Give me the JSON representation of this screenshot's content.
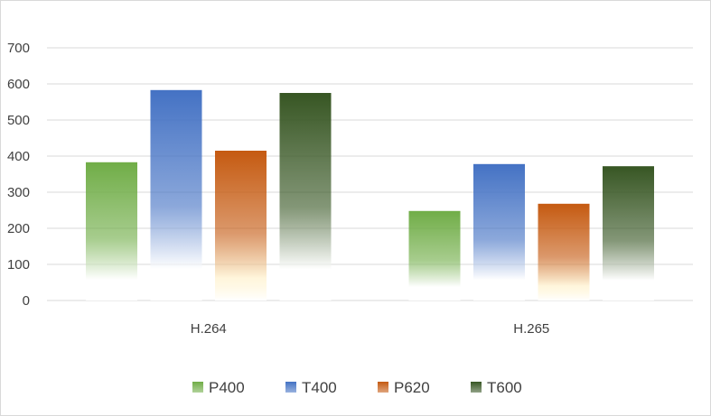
{
  "chart_data": {
    "type": "bar",
    "categories": [
      "H.264",
      "H.265"
    ],
    "series": [
      {
        "name": "P400",
        "values": [
          383,
          248
        ],
        "color": "#70ad47",
        "fade": "#ffffff"
      },
      {
        "name": "T400",
        "values": [
          583,
          378
        ],
        "color": "#4472c4",
        "fade": "#ffffff"
      },
      {
        "name": "P620",
        "values": [
          415,
          268
        ],
        "color": "#c55a11",
        "fade": "#fff2cc"
      },
      {
        "name": "T600",
        "values": [
          575,
          372
        ],
        "color": "#375623",
        "fade": "#ffffff"
      }
    ],
    "ylim": [
      0,
      700
    ],
    "yticks": [
      0,
      100,
      200,
      300,
      400,
      500,
      600,
      700
    ],
    "grid": true,
    "legend_position": "bottom",
    "title": "",
    "xlabel": "",
    "ylabel": ""
  }
}
